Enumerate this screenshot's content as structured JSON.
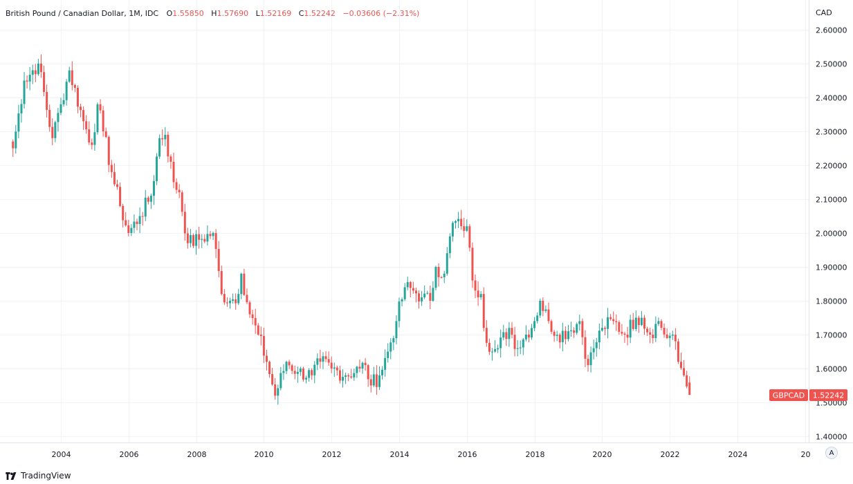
{
  "legend": {
    "symbol": "British Pound / Canadian Dollar, 1M, IDC",
    "o_label": "O",
    "o_value": "1.55850",
    "h_label": "H",
    "h_value": "1.57690",
    "l_label": "L",
    "l_value": "1.52169",
    "c_label": "C",
    "c_value": "1.52242",
    "change": "−0.03606 (−2.31%)"
  },
  "axis": {
    "currency": "CAD"
  },
  "price_tag": {
    "ticker": "GBPCAD",
    "value": "1.52242"
  },
  "auto_button": "A",
  "branding": "TradingView",
  "colors": {
    "up": "#26a69a",
    "down": "#ef5350",
    "grid": "#f0f3fa",
    "tag": "#ef5350"
  },
  "chart_data": {
    "type": "candlestick",
    "interval": "1M",
    "y_ticks": [
      "2.60000",
      "2.50000",
      "2.40000",
      "2.30000",
      "2.20000",
      "2.10000",
      "2.00000",
      "1.90000",
      "1.80000",
      "1.70000",
      "1.60000",
      "1.50000",
      "1.40000"
    ],
    "x_ticks": [
      "2004",
      "2006",
      "2008",
      "2010",
      "2012",
      "2014",
      "2016",
      "2018",
      "2020",
      "2022",
      "2024",
      "20"
    ],
    "ylim": [
      1.38,
      2.64
    ],
    "first_x": "2002-08",
    "last_x": "2022-08",
    "last": {
      "o": 1.5585,
      "h": 1.5769,
      "l": 1.52169,
      "c": 1.52242
    },
    "close_anchors": [
      [
        "2002-08",
        2.25
      ],
      [
        "2002-12",
        2.45
      ],
      [
        "2003-05",
        2.5
      ],
      [
        "2003-10",
        2.28
      ],
      [
        "2004-01",
        2.38
      ],
      [
        "2004-04",
        2.48
      ],
      [
        "2004-09",
        2.33
      ],
      [
        "2004-12",
        2.26
      ],
      [
        "2005-02",
        2.38
      ],
      [
        "2005-04",
        2.3
      ],
      [
        "2005-07",
        2.18
      ],
      [
        "2005-10",
        2.08
      ],
      [
        "2006-01",
        2.0
      ],
      [
        "2006-05",
        2.05
      ],
      [
        "2006-09",
        2.11
      ],
      [
        "2006-12",
        2.28
      ],
      [
        "2007-02",
        2.29
      ],
      [
        "2007-05",
        2.15
      ],
      [
        "2007-07",
        2.12
      ],
      [
        "2007-10",
        1.97
      ],
      [
        "2008-02",
        1.98
      ],
      [
        "2008-07",
        2.0
      ],
      [
        "2008-10",
        1.82
      ],
      [
        "2009-01",
        1.8
      ],
      [
        "2009-04",
        1.82
      ],
      [
        "2009-05",
        1.88
      ],
      [
        "2009-08",
        1.76
      ],
      [
        "2009-11",
        1.7
      ],
      [
        "2010-02",
        1.62
      ],
      [
        "2010-05",
        1.52
      ],
      [
        "2010-09",
        1.62
      ],
      [
        "2011-01",
        1.59
      ],
      [
        "2011-06",
        1.58
      ],
      [
        "2011-09",
        1.62
      ],
      [
        "2012-01",
        1.6
      ],
      [
        "2012-06",
        1.58
      ],
      [
        "2012-11",
        1.6
      ],
      [
        "2013-01",
        1.61
      ],
      [
        "2013-03",
        1.55
      ],
      [
        "2013-06",
        1.58
      ],
      [
        "2013-09",
        1.65
      ],
      [
        "2013-12",
        1.74
      ],
      [
        "2014-03",
        1.84
      ],
      [
        "2014-06",
        1.83
      ],
      [
        "2014-09",
        1.81
      ],
      [
        "2014-12",
        1.8
      ],
      [
        "2015-02",
        1.9
      ],
      [
        "2015-05",
        1.88
      ],
      [
        "2015-08",
        2.03
      ],
      [
        "2015-11",
        2.02
      ],
      [
        "2016-01",
        2.02
      ],
      [
        "2016-03",
        1.86
      ],
      [
        "2016-06",
        1.82
      ],
      [
        "2016-07",
        1.72
      ],
      [
        "2016-10",
        1.65
      ],
      [
        "2016-12",
        1.66
      ],
      [
        "2017-04",
        1.72
      ],
      [
        "2017-07",
        1.66
      ],
      [
        "2017-10",
        1.7
      ],
      [
        "2018-01",
        1.74
      ],
      [
        "2018-03",
        1.8
      ],
      [
        "2018-06",
        1.74
      ],
      [
        "2018-09",
        1.7
      ],
      [
        "2019-01",
        1.71
      ],
      [
        "2019-05",
        1.74
      ],
      [
        "2019-08",
        1.61
      ],
      [
        "2019-10",
        1.66
      ],
      [
        "2020-01",
        1.72
      ],
      [
        "2020-05",
        1.74
      ],
      [
        "2020-09",
        1.7
      ],
      [
        "2021-01",
        1.75
      ],
      [
        "2021-03",
        1.75
      ],
      [
        "2021-06",
        1.7
      ],
      [
        "2021-09",
        1.74
      ],
      [
        "2021-12",
        1.69
      ],
      [
        "2022-02",
        1.7
      ],
      [
        "2022-04",
        1.62
      ],
      [
        "2022-06",
        1.58
      ],
      [
        "2022-08",
        1.52242
      ]
    ]
  }
}
